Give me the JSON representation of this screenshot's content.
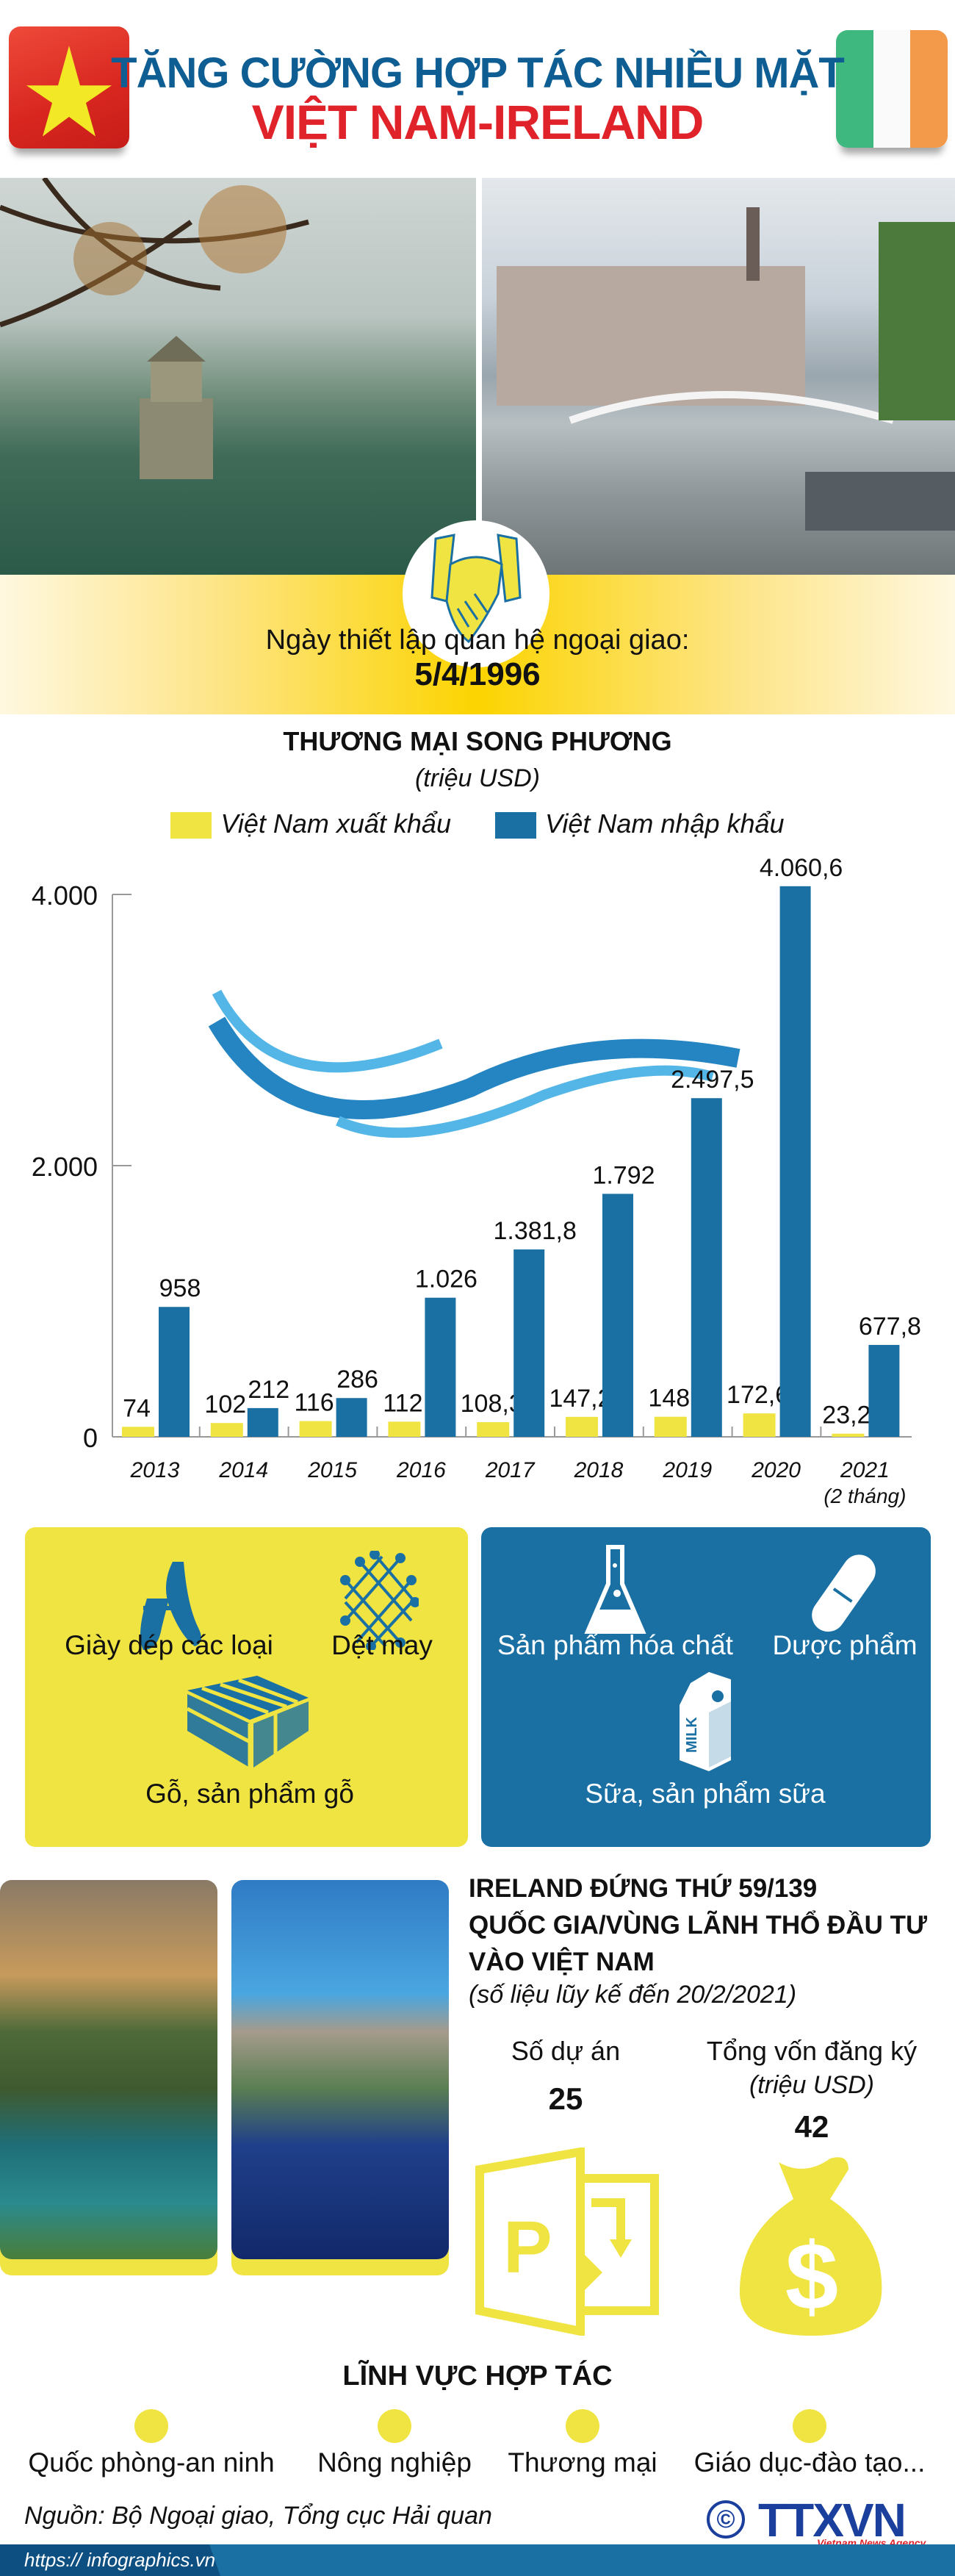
{
  "header": {
    "title_line1": "TĂNG CƯỜNG HỢP TÁC NHIỀU MẶT",
    "title_line2": "VIỆT NAM-IRELAND"
  },
  "colors": {
    "blue": "#1a6fa3",
    "yellow": "#f0e442",
    "title_blue": "#0e5e93",
    "red": "#e0232a"
  },
  "diplomatic": {
    "label": "Ngày thiết lập quan hệ ngoại giao:",
    "date": "5/4/1996"
  },
  "chart_data": {
    "type": "bar",
    "title": "THƯƠNG MẠI SONG PHƯƠNG",
    "subtitle": "(triệu USD)",
    "categories": [
      "2013",
      "2014",
      "2015",
      "2016",
      "2017",
      "2018",
      "2019",
      "2020",
      "2021"
    ],
    "category_notes": {
      "2021": "(2 tháng)"
    },
    "ylim": [
      0,
      4000
    ],
    "yticks": [
      "0",
      "2.000",
      "4.000"
    ],
    "legend_placement": "top",
    "series": [
      {
        "name": "Việt Nam xuất khẩu",
        "color": "#f0e442",
        "values": [
          74,
          102,
          116,
          112,
          108.3,
          147.2,
          148,
          172.6,
          23.2
        ],
        "labels": [
          "74",
          "102",
          "116",
          "112",
          "108,3",
          "147,2",
          "148",
          "172,6",
          "23,2"
        ]
      },
      {
        "name": "Việt Nam nhập khẩu",
        "color": "#1a6fa3",
        "values": [
          958,
          212,
          286,
          1026,
          1381.8,
          1792,
          2497.5,
          4060.6,
          677.8
        ],
        "labels": [
          "958",
          "212",
          "286",
          "1.026",
          "1.381,8",
          "1.792",
          "2.497,5",
          "4.060,6",
          "677,8"
        ]
      }
    ]
  },
  "exports": {
    "items": [
      {
        "label": "Giày dép các loại",
        "icon": "shoes-icon"
      },
      {
        "label": "Dệt may",
        "icon": "textile-icon"
      },
      {
        "label": "Gỗ, sản phẩm gỗ",
        "icon": "wood-pallet-icon"
      }
    ]
  },
  "imports": {
    "items": [
      {
        "label": "Sản phẩm hóa chất",
        "icon": "flask-icon"
      },
      {
        "label": "Dược phẩm",
        "icon": "pill-icon"
      },
      {
        "label": "Sữa, sản phẩm sữa",
        "icon": "milk-carton-icon"
      }
    ],
    "milk_text": "MILK"
  },
  "investment": {
    "heading_lines": [
      "IRELAND ĐỨNG THỨ 59/139",
      "QUỐC GIA/VÙNG LÃNH THỔ ĐẦU TƯ",
      "VÀO VIỆT NAM"
    ],
    "note": "(số liệu lũy kế đến 20/2/2021)",
    "projects_label": "Số dự án",
    "projects_value": "25",
    "capital_label": "Tổng vốn đăng ký",
    "capital_unit": "(triệu USD)",
    "capital_value": "42"
  },
  "fields": {
    "title": "LĨNH VỰC HỢP TÁC",
    "items": [
      "Quốc phòng-an ninh",
      "Nông nghiệp",
      "Thương mại",
      "Giáo dục-đào tạo..."
    ]
  },
  "footer": {
    "source": "Nguồn: Bộ Ngoại giao, Tổng cục Hải quan",
    "url": "https:// infographics.vn",
    "copyright": "©",
    "logo": "TTXVN",
    "logo_sub": "Vietnam News Agency"
  }
}
